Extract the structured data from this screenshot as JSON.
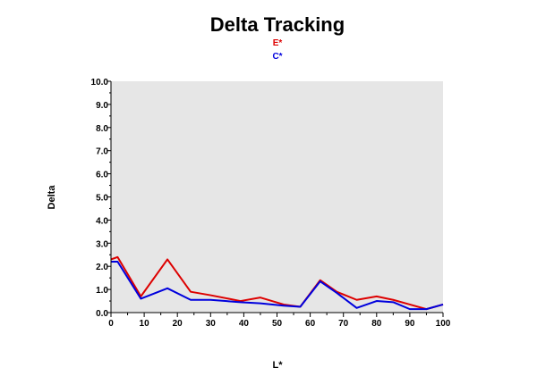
{
  "chart_data": {
    "type": "line",
    "title": "Delta Tracking",
    "xlabel": "L*",
    "ylabel": "Delta",
    "xlim": [
      0,
      100
    ],
    "ylim": [
      0,
      10
    ],
    "x_ticks": [
      "0",
      "10",
      "20",
      "30",
      "40",
      "50",
      "60",
      "70",
      "80",
      "90",
      "100"
    ],
    "y_ticks": [
      "0.0",
      "1.0",
      "2.0",
      "3.0",
      "4.0",
      "5.0",
      "6.0",
      "7.0",
      "8.0",
      "9.0",
      "10.0"
    ],
    "grid": false,
    "legend_position": "top-center",
    "plot_background": "#e6e6e6",
    "series": [
      {
        "name": "E*",
        "color": "#dd0000",
        "points": [
          [
            0,
            2.3
          ],
          [
            2,
            2.4
          ],
          [
            9,
            0.7
          ],
          [
            17,
            2.3
          ],
          [
            24,
            0.9
          ],
          [
            30,
            0.75
          ],
          [
            39,
            0.5
          ],
          [
            45,
            0.65
          ],
          [
            52,
            0.35
          ],
          [
            57,
            0.25
          ],
          [
            63,
            1.4
          ],
          [
            68,
            0.9
          ],
          [
            74,
            0.55
          ],
          [
            80,
            0.7
          ],
          [
            85,
            0.55
          ],
          [
            90,
            0.35
          ],
          [
            95,
            0.15
          ],
          [
            100,
            0.35
          ]
        ]
      },
      {
        "name": "C*",
        "color": "#0000dd",
        "points": [
          [
            0,
            2.2
          ],
          [
            2,
            2.2
          ],
          [
            9,
            0.6
          ],
          [
            17,
            1.05
          ],
          [
            24,
            0.55
          ],
          [
            30,
            0.55
          ],
          [
            39,
            0.45
          ],
          [
            45,
            0.4
          ],
          [
            52,
            0.3
          ],
          [
            57,
            0.25
          ],
          [
            63,
            1.35
          ],
          [
            68,
            0.85
          ],
          [
            74,
            0.2
          ],
          [
            80,
            0.5
          ],
          [
            85,
            0.45
          ],
          [
            90,
            0.15
          ],
          [
            95,
            0.15
          ],
          [
            100,
            0.35
          ]
        ]
      }
    ]
  }
}
